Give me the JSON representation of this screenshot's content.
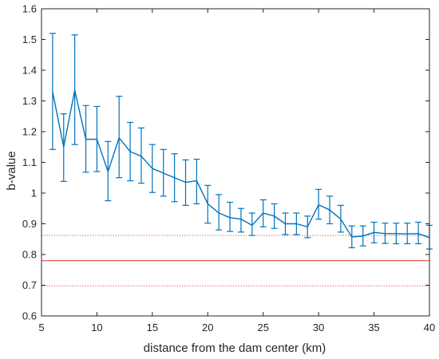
{
  "chart_data": {
    "type": "line",
    "xlabel": "distance from the dam center (km)",
    "ylabel": "b-value",
    "xlim": [
      5,
      40
    ],
    "ylim": [
      0.6,
      1.6
    ],
    "xticks": [
      5,
      10,
      15,
      20,
      25,
      30,
      35,
      40
    ],
    "yticks": [
      0.6,
      0.7,
      0.8,
      0.9,
      1.0,
      1.1,
      1.2,
      1.3,
      1.4,
      1.5,
      1.6
    ],
    "xtick_labels": [
      "5",
      "10",
      "15",
      "20",
      "25",
      "30",
      "35",
      "40"
    ],
    "ytick_labels": [
      "0.6",
      "0.7",
      "0.8",
      "0.9",
      "1",
      "1.1",
      "1.2",
      "1.3",
      "1.4",
      "1.5",
      "1.6"
    ],
    "grid": false,
    "series": [
      {
        "color": "#0072bd",
        "x": [
          6,
          7,
          8,
          9,
          10,
          11,
          12,
          13,
          14,
          15,
          16,
          17,
          18,
          19,
          20,
          21,
          22,
          23,
          24,
          25,
          26,
          27,
          28,
          29,
          30,
          31,
          32,
          33,
          34,
          35,
          36,
          37,
          38,
          39,
          40
        ],
        "y": [
          1.33,
          1.15,
          1.335,
          1.175,
          1.175,
          1.07,
          1.18,
          1.135,
          1.12,
          1.08,
          1.065,
          1.05,
          1.035,
          1.04,
          0.965,
          0.935,
          0.92,
          0.915,
          0.895,
          0.935,
          0.925,
          0.9,
          0.9,
          0.89,
          0.962,
          0.945,
          0.915,
          0.857,
          0.86,
          0.872,
          0.868,
          0.868,
          0.867,
          0.868,
          0.855
        ],
        "err_upper": [
          1.52,
          1.258,
          1.515,
          1.285,
          1.282,
          1.168,
          1.315,
          1.23,
          1.212,
          1.158,
          1.142,
          1.128,
          1.108,
          1.11,
          1.025,
          0.995,
          0.97,
          0.95,
          0.935,
          0.978,
          0.965,
          0.935,
          0.935,
          0.925,
          1.012,
          0.99,
          0.96,
          0.893,
          0.893,
          0.905,
          0.902,
          0.902,
          0.902,
          0.905,
          0.895
        ],
        "err_lower": [
          1.142,
          1.038,
          1.158,
          1.068,
          1.07,
          0.975,
          1.05,
          1.04,
          1.032,
          1.002,
          0.99,
          0.972,
          0.96,
          0.965,
          0.902,
          0.88,
          0.875,
          0.873,
          0.862,
          0.89,
          0.885,
          0.865,
          0.865,
          0.855,
          0.915,
          0.9,
          0.873,
          0.822,
          0.828,
          0.838,
          0.836,
          0.835,
          0.835,
          0.835,
          0.818
        ]
      }
    ],
    "reference_lines": [
      {
        "y": 0.78,
        "style": "solid",
        "color": "#e8473f"
      },
      {
        "y": 0.862,
        "style": "dotted",
        "color": "#e8473f"
      },
      {
        "y": 0.698,
        "style": "dotted",
        "color": "#e8473f"
      }
    ]
  }
}
